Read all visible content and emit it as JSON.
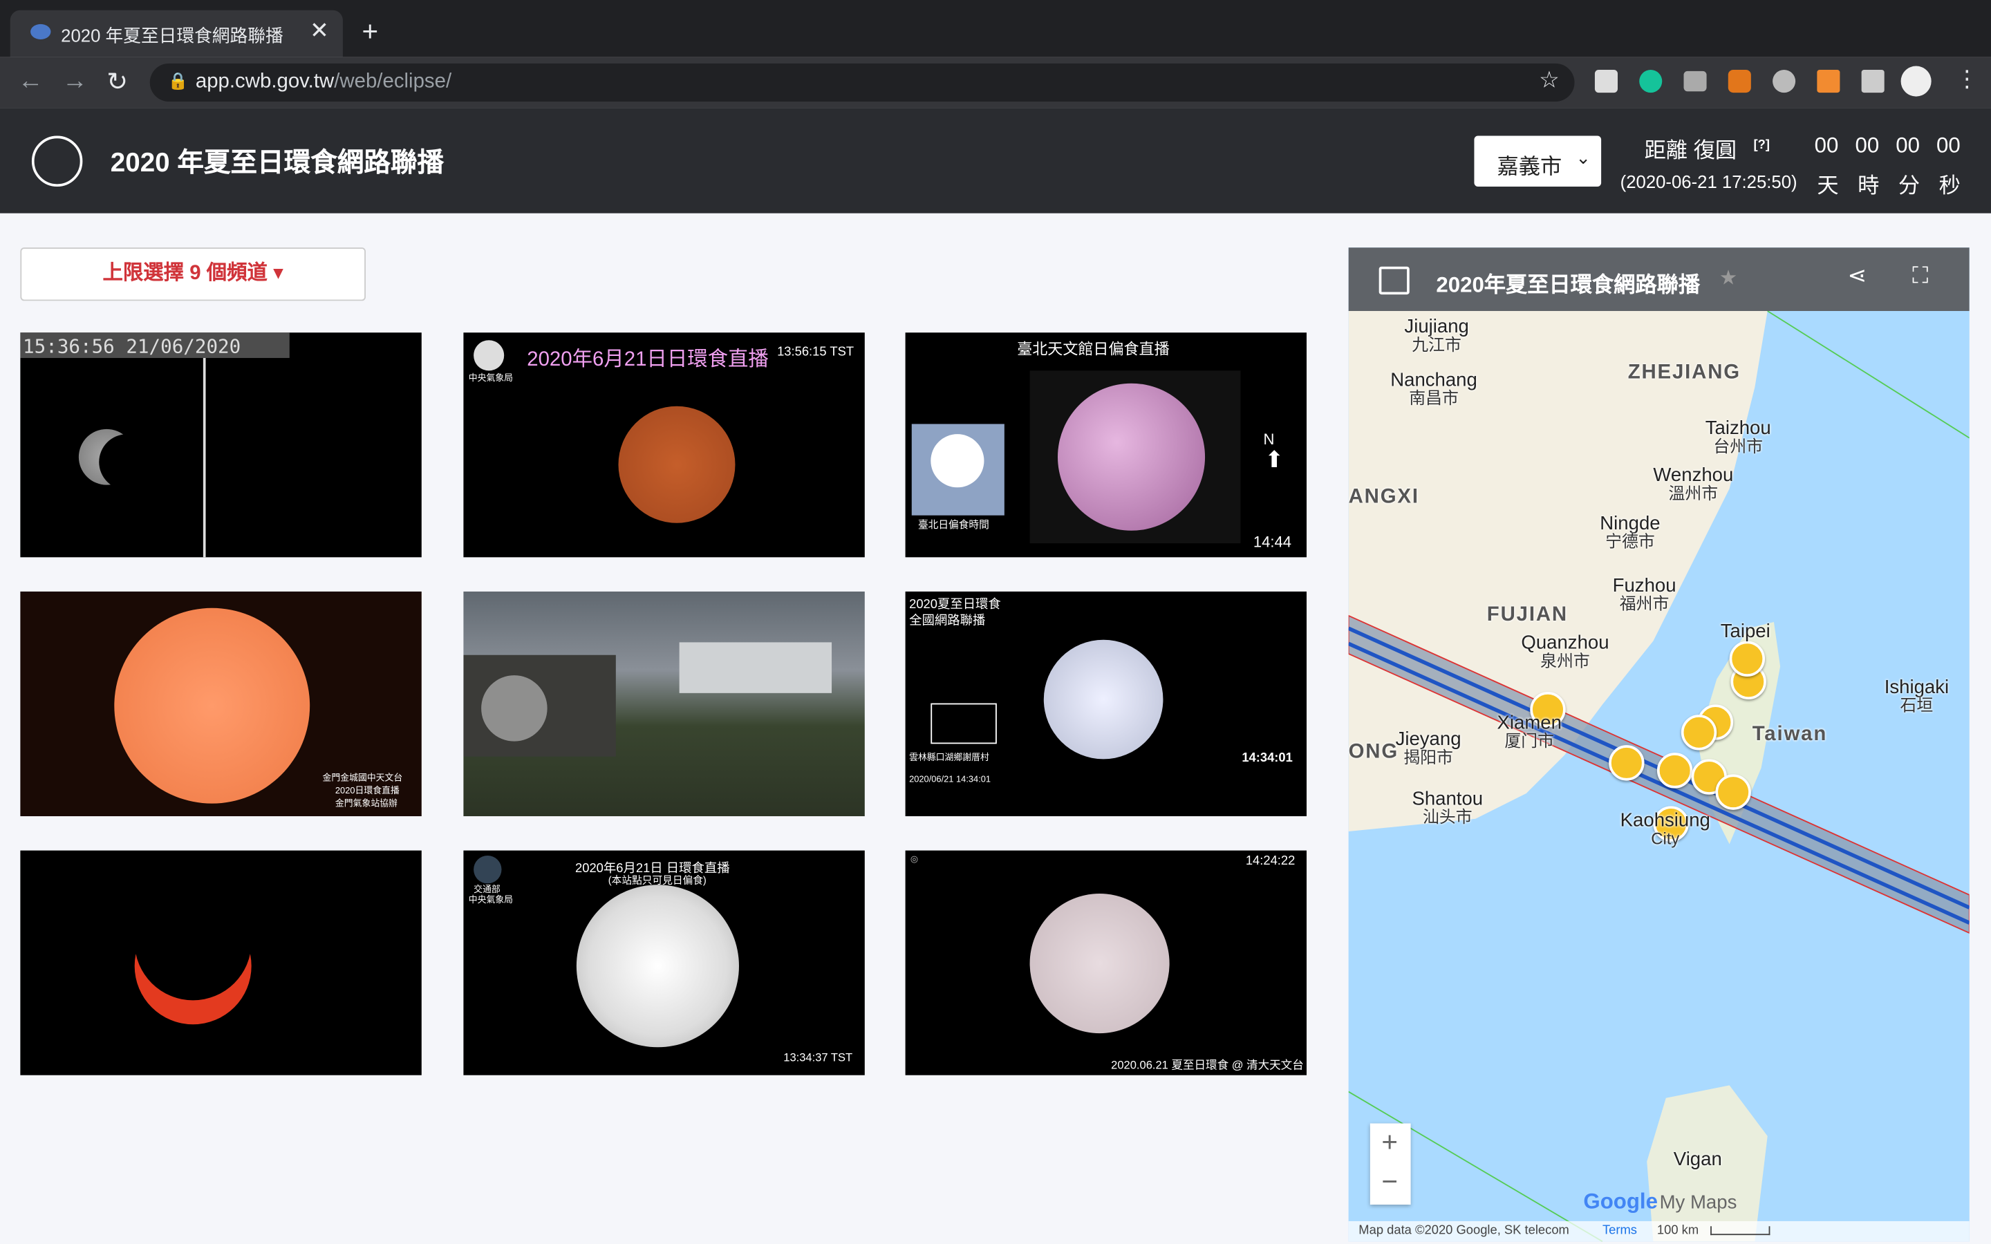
{
  "browser": {
    "tab_title": "2020 年夏至日環食網路聯播",
    "url_host": "app.cwb.gov.tw",
    "url_path": "/web/eclipse/"
  },
  "header": {
    "title": "2020 年夏至日環食網路聯播",
    "city": "嘉義市",
    "countdown_label": "距離 復圓",
    "help": "[?]",
    "target_time": "(2020-06-21 17:25:50)",
    "countdown": [
      {
        "value": "00",
        "unit": "天"
      },
      {
        "value": "00",
        "unit": "時"
      },
      {
        "value": "00",
        "unit": "分"
      },
      {
        "value": "00",
        "unit": "秒"
      }
    ]
  },
  "channel_button": "上限選擇 9 個頻道",
  "videos": [
    {
      "texts": [
        "15:36:56 21/06/2020"
      ]
    },
    {
      "texts": [
        "2020年6月21日日環食直播",
        "13:56:15  TST",
        "中央氣象局"
      ]
    },
    {
      "texts": [
        "臺北天文館日偏食直播",
        "N",
        "14:44",
        "臺北日偏食時間"
      ]
    },
    {
      "texts": [
        "金門金城國中天文台",
        "2020日環食直播",
        "金門氣象站協辦"
      ]
    },
    {
      "texts": []
    },
    {
      "texts": [
        "2020夏至日環食",
        "全國網路聯播",
        "14:34:01",
        "雲林縣口湖鄉謝厝村",
        "2020/06/21 14:34:01"
      ]
    },
    {
      "texts": []
    },
    {
      "texts": [
        "2020年6月21日  日環食直播",
        "(本站點只可見日偏食)",
        "交通部",
        "中央氣象局",
        "13:34:37  TST"
      ]
    },
    {
      "texts": [
        "14:24:22",
        "2020.06.21 夏至日環食 @ 清大天文台"
      ]
    }
  ],
  "map": {
    "title": "2020年夏至日環食網路聯播",
    "labels": [
      {
        "en": "Jiujiang",
        "zh": "九江市"
      },
      {
        "en": "Nanchang",
        "zh": "南昌市"
      },
      {
        "en": "ZHEJIANG"
      },
      {
        "en": "Taizhou",
        "zh": "台州市"
      },
      {
        "en": "Wenzhou",
        "zh": "溫州市"
      },
      {
        "en": "ANGXI"
      },
      {
        "en": "Ningde",
        "zh": "宁德市"
      },
      {
        "en": "Fuzhou",
        "zh": "福州市"
      },
      {
        "en": "FUJIAN"
      },
      {
        "en": "Quanzhou",
        "zh": "泉州市"
      },
      {
        "en": "Taipei"
      },
      {
        "en": "Xiamen",
        "zh": "厦门市"
      },
      {
        "en": "Taiwan"
      },
      {
        "en": "Jieyang",
        "zh": "揭阳市"
      },
      {
        "en": "ONG"
      },
      {
        "en": "Shantou",
        "zh": "汕头市"
      },
      {
        "en": "Kaohsiung",
        "zh": "City"
      },
      {
        "en": "Ishigaki",
        "zh": "石垣"
      },
      {
        "en": "Vigan"
      }
    ],
    "zoom_in": "+",
    "zoom_out": "−",
    "logo": "Google",
    "logo_suffix": "My Maps",
    "attribution": "Map data ©2020 Google, SK telecom",
    "terms": "Terms",
    "scale": "100 km"
  }
}
